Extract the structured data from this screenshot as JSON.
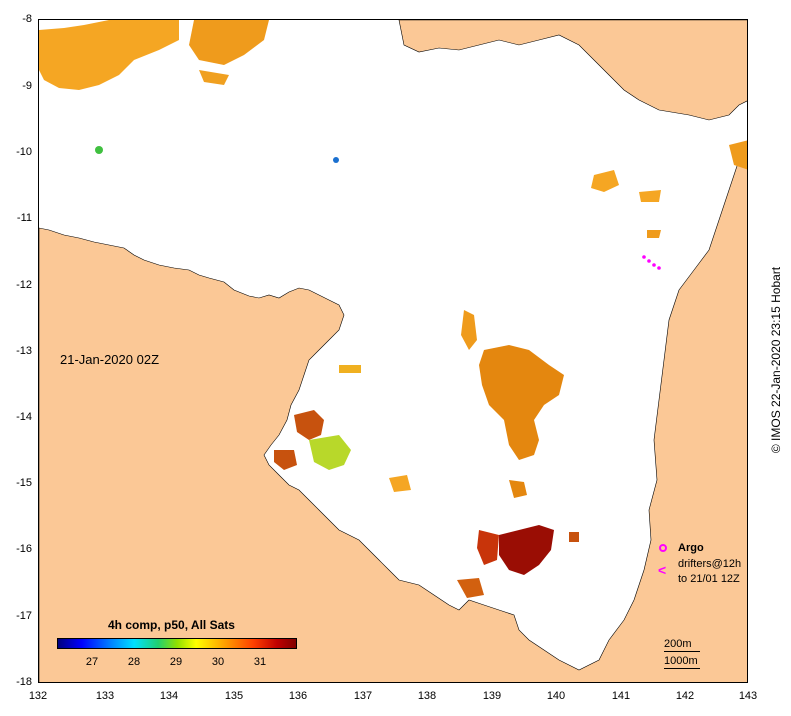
{
  "map": {
    "lon_ticks": [
      "132",
      "133",
      "134",
      "135",
      "136",
      "137",
      "138",
      "139",
      "140",
      "141",
      "142",
      "143"
    ],
    "lat_ticks": [
      "-8",
      "-9",
      "-10",
      "-11",
      "-12",
      "-13",
      "-14",
      "-15",
      "-16",
      "-17",
      "-18"
    ],
    "land_color": "#fbc896",
    "sea_color": "#ffffff",
    "date_label": "21-Jan-2020 02Z"
  },
  "colorbar": {
    "title": "4h comp, p50, All Sats",
    "ticks": [
      "27",
      "28",
      "29",
      "30",
      "31"
    ]
  },
  "legend": {
    "argo": "Argo",
    "drifters_line1": "drifters@12h",
    "drifters_line2": "to 21/01 12Z",
    "drifter_symbol": "<",
    "argo_color": "#ff00ff"
  },
  "scale": {
    "label_200": "200m",
    "label_1000": "1000m"
  },
  "credit": "© IMOS 22-Jan-2020 23:15 Hobart"
}
